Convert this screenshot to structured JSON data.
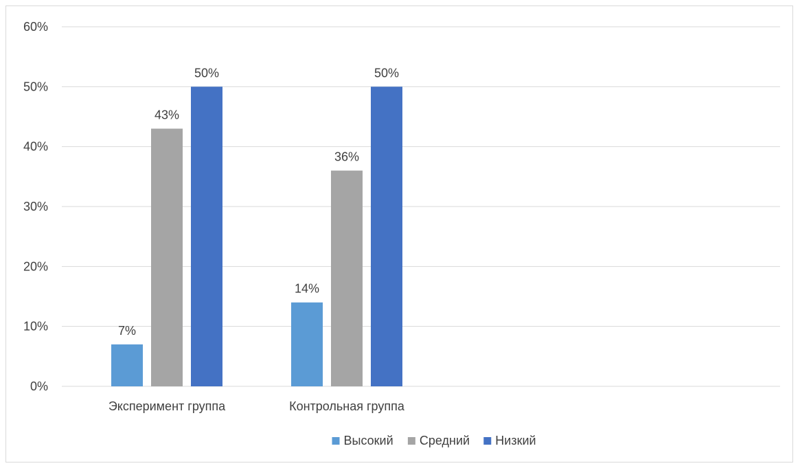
{
  "chart_data": {
    "type": "bar",
    "categories": [
      "Эксперимент группа",
      "Контрольная группа"
    ],
    "series": [
      {
        "name": "Высокий",
        "values": [
          7,
          14
        ],
        "color": "#5B9BD5"
      },
      {
        "name": "Средний",
        "values": [
          43,
          36
        ],
        "color": "#A5A5A5"
      },
      {
        "name": "Низкий",
        "values": [
          50,
          50
        ],
        "color": "#4472C4"
      }
    ],
    "value_suffix": "%",
    "ylim": [
      0,
      60
    ],
    "yticks": [
      0,
      10,
      20,
      30,
      40,
      50,
      60
    ],
    "ytick_labels": [
      "0%",
      "10%",
      "20%",
      "30%",
      "40%",
      "50%",
      "60%"
    ],
    "grid": true,
    "legend_position": "bottom",
    "gridline_color": "#D9D9D9",
    "text_color": "#404040"
  }
}
